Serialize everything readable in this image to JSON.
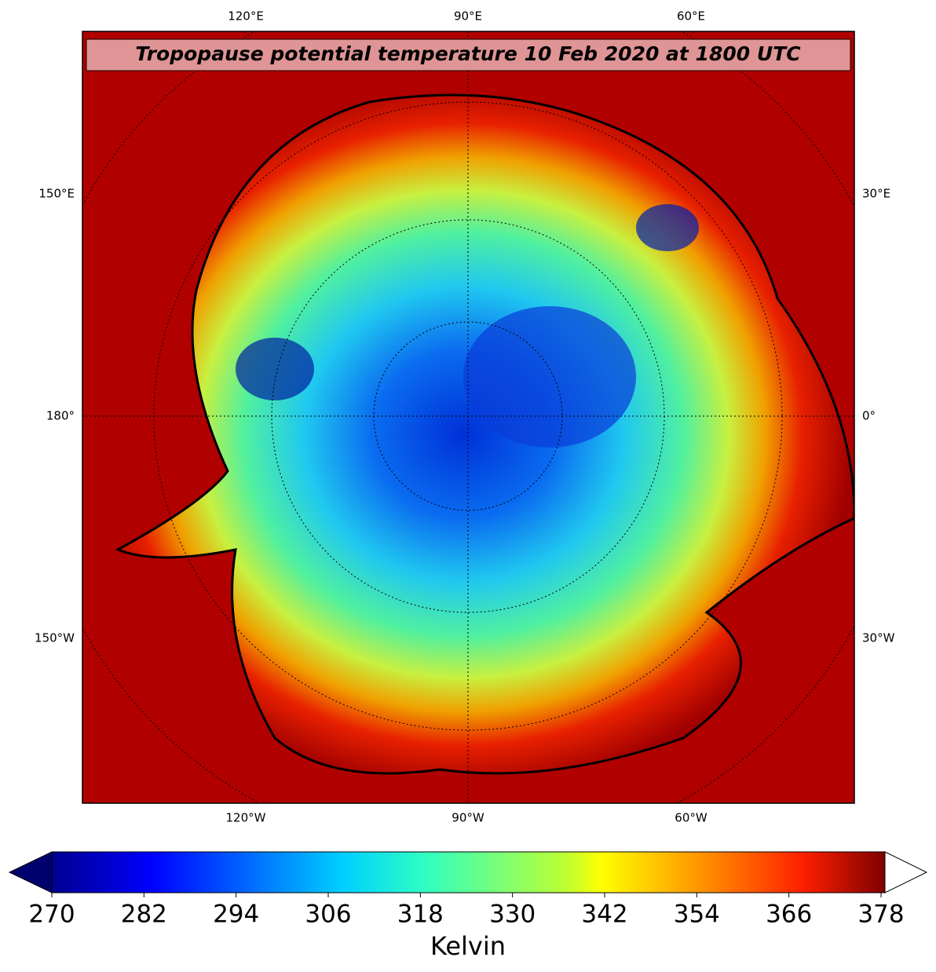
{
  "map": {
    "title": "Tropopause potential temperature 10 Feb 2020 at 1800 UTC",
    "top_labels": [
      "120°E",
      "90°E",
      "60°E"
    ],
    "left_labels": [
      "150°E",
      "180°",
      "150°W"
    ],
    "right_labels": [
      "30°E",
      "0°",
      "30°W"
    ],
    "bottom_labels": [
      "120°W",
      "90°W",
      "60°W"
    ]
  },
  "colorbar": {
    "label": "Kelvin",
    "lim": [
      270,
      378
    ],
    "ticks": [
      270,
      282,
      294,
      306,
      318,
      330,
      342,
      354,
      366,
      378
    ]
  }
}
